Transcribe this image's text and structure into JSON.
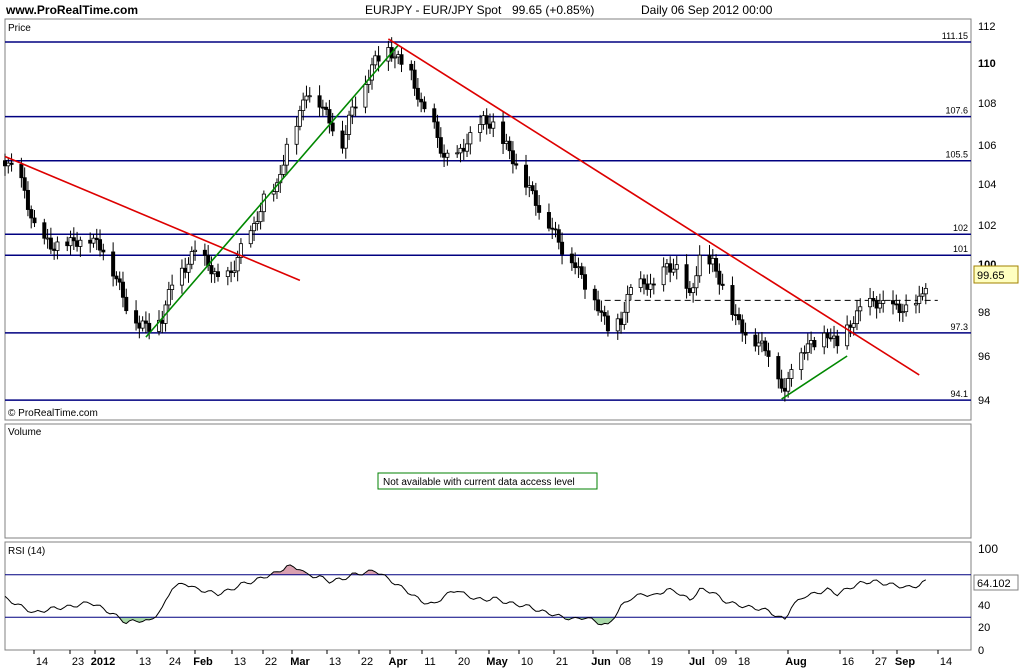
{
  "header": {
    "site": "www.ProRealTime.com",
    "instrument": "EURJPY - EUR/JPY Spot",
    "quote": "99.65 (+0.85%)",
    "period": "Daily  06 Sep 2012 00:00"
  },
  "price_panel": {
    "label": "Price",
    "watermark": "© ProRealTime.com",
    "last_price": "99.65",
    "y_ticks": [
      "112",
      "110",
      "108",
      "106",
      "104",
      "102",
      "100",
      "98",
      "96",
      "94"
    ]
  },
  "volume_panel": {
    "label": "Volume",
    "notice": "Not available with current data access level"
  },
  "rsi_panel": {
    "label": "RSI (14)",
    "last_value": "64.102",
    "y_ticks": [
      "100",
      "60",
      "40",
      "20",
      "0"
    ]
  },
  "x_axis": {
    "ticks": [
      "14",
      "23",
      "2012",
      "13",
      "24",
      "Feb",
      "13",
      "22",
      "Mar",
      "13",
      "22",
      "Apr",
      "11",
      "20",
      "May",
      "10",
      "21",
      "Jun",
      "08",
      "19",
      "Jul",
      "09",
      "18",
      "Aug",
      "16",
      "27",
      "Sep",
      "14"
    ]
  },
  "chart_data": {
    "type": "candlestick",
    "x_range": [
      "2011-11-30",
      "2012-09-14"
    ],
    "ylim": [
      93.2,
      112.2
    ],
    "horizontal_levels": [
      {
        "value": 111.15,
        "label": "111.15"
      },
      {
        "value": 107.6,
        "label": "107.6"
      },
      {
        "value": 105.5,
        "label": "105.5"
      },
      {
        "value": 102,
        "label": "102"
      },
      {
        "value": 101,
        "label": "101"
      },
      {
        "value": 97.3,
        "label": "97.3"
      },
      {
        "value": 94.1,
        "label": "94.1"
      }
    ],
    "dashed_level": {
      "value": 98.85,
      "from": "2012-05-31",
      "to": "2012-09-06"
    },
    "trendlines": [
      {
        "color": "#dd0000",
        "from": [
          "2011-11-30",
          105.7
        ],
        "to": [
          "2012-02-28",
          99.8
        ]
      },
      {
        "color": "#008800",
        "from": [
          "2012-01-12",
          97.1
        ],
        "to": [
          "2012-03-29",
          111.0
        ]
      },
      {
        "color": "#dd0000",
        "from": [
          "2012-03-26",
          111.3
        ],
        "to": [
          "2012-09-04",
          95.3
        ]
      },
      {
        "color": "#008800",
        "from": [
          "2012-07-24",
          94.15
        ],
        "to": [
          "2012-08-13",
          96.2
        ]
      }
    ],
    "price_path": [
      [
        "2011-11-30",
        105.5
      ],
      [
        "2011-12-05",
        104.5
      ],
      [
        "2011-12-09",
        102.3
      ],
      [
        "2011-12-14",
        101.4
      ],
      [
        "2011-12-20",
        101.6
      ],
      [
        "2011-12-26",
        101.8
      ],
      [
        "2011-12-30",
        101.3
      ],
      [
        "2012-01-03",
        99.9
      ],
      [
        "2012-01-06",
        98.6
      ],
      [
        "2012-01-10",
        97.7
      ],
      [
        "2012-01-13",
        97.6
      ],
      [
        "2012-01-17",
        98.0
      ],
      [
        "2012-01-20",
        99.7
      ],
      [
        "2012-01-24",
        100.4
      ],
      [
        "2012-01-27",
        101.2
      ],
      [
        "2012-01-31",
        100.6
      ],
      [
        "2012-02-03",
        99.8
      ],
      [
        "2012-02-07",
        100.1
      ],
      [
        "2012-02-10",
        101.3
      ],
      [
        "2012-02-14",
        102.3
      ],
      [
        "2012-02-17",
        103.7
      ],
      [
        "2012-02-21",
        104.2
      ],
      [
        "2012-02-24",
        106.2
      ],
      [
        "2012-02-28",
        107.7
      ],
      [
        "2012-03-01",
        108.8
      ],
      [
        "2012-03-05",
        108.3
      ],
      [
        "2012-03-08",
        107.4
      ],
      [
        "2012-03-12",
        106.3
      ],
      [
        "2012-03-15",
        108.0
      ],
      [
        "2012-03-19",
        109.2
      ],
      [
        "2012-03-22",
        110.3
      ],
      [
        "2012-03-26",
        110.8
      ],
      [
        "2012-03-29",
        110.3
      ],
      [
        "2012-04-02",
        109.6
      ],
      [
        "2012-04-05",
        108.1
      ],
      [
        "2012-04-09",
        107.1
      ],
      [
        "2012-04-12",
        105.6
      ],
      [
        "2012-04-16",
        105.7
      ],
      [
        "2012-04-19",
        106.4
      ],
      [
        "2012-04-24",
        107.4
      ],
      [
        "2012-04-27",
        107.2
      ],
      [
        "2012-05-01",
        106.2
      ],
      [
        "2012-05-04",
        105.3
      ],
      [
        "2012-05-08",
        104.2
      ],
      [
        "2012-05-11",
        103.2
      ],
      [
        "2012-05-15",
        102.3
      ],
      [
        "2012-05-18",
        101.3
      ],
      [
        "2012-05-22",
        100.6
      ],
      [
        "2012-05-25",
        99.6
      ],
      [
        "2012-05-29",
        98.6
      ],
      [
        "2012-06-01",
        97.5
      ],
      [
        "2012-06-05",
        97.9
      ],
      [
        "2012-06-08",
        99.4
      ],
      [
        "2012-06-12",
        99.7
      ],
      [
        "2012-06-15",
        99.4
      ],
      [
        "2012-06-19",
        100.5
      ],
      [
        "2012-06-22",
        100.3
      ],
      [
        "2012-06-26",
        99.0
      ],
      [
        "2012-06-29",
        100.8
      ],
      [
        "2012-07-03",
        100.6
      ],
      [
        "2012-07-06",
        99.5
      ],
      [
        "2012-07-10",
        98.0
      ],
      [
        "2012-07-13",
        97.3
      ],
      [
        "2012-07-17",
        96.8
      ],
      [
        "2012-07-20",
        96.4
      ],
      [
        "2012-07-23",
        95.3
      ],
      [
        "2012-07-25",
        94.3
      ],
      [
        "2012-07-27",
        95.8
      ],
      [
        "2012-07-31",
        96.6
      ],
      [
        "2012-08-03",
        96.8
      ],
      [
        "2012-08-07",
        97.3
      ],
      [
        "2012-08-10",
        96.7
      ],
      [
        "2012-08-14",
        97.7
      ],
      [
        "2012-08-17",
        98.4
      ],
      [
        "2012-08-21",
        98.8
      ],
      [
        "2012-08-24",
        98.6
      ],
      [
        "2012-08-28",
        98.5
      ],
      [
        "2012-08-31",
        98.4
      ],
      [
        "2012-09-04",
        98.8
      ],
      [
        "2012-09-06",
        99.65
      ]
    ],
    "rsi_path": [
      [
        "2011-11-30",
        48
      ],
      [
        "2011-12-05",
        40
      ],
      [
        "2011-12-09",
        34
      ],
      [
        "2011-12-14",
        38
      ],
      [
        "2011-12-20",
        40
      ],
      [
        "2011-12-26",
        44
      ],
      [
        "2011-12-30",
        38
      ],
      [
        "2012-01-03",
        31
      ],
      [
        "2012-01-06",
        25
      ],
      [
        "2012-01-10",
        27
      ],
      [
        "2012-01-13",
        26
      ],
      [
        "2012-01-17",
        38
      ],
      [
        "2012-01-20",
        58
      ],
      [
        "2012-01-24",
        62
      ],
      [
        "2012-01-27",
        57
      ],
      [
        "2012-01-31",
        54
      ],
      [
        "2012-02-03",
        52
      ],
      [
        "2012-02-07",
        56
      ],
      [
        "2012-02-10",
        61
      ],
      [
        "2012-02-14",
        64
      ],
      [
        "2012-02-17",
        68
      ],
      [
        "2012-02-21",
        72
      ],
      [
        "2012-02-24",
        78
      ],
      [
        "2012-02-28",
        76
      ],
      [
        "2012-03-01",
        70
      ],
      [
        "2012-03-05",
        68
      ],
      [
        "2012-03-08",
        64
      ],
      [
        "2012-03-12",
        66
      ],
      [
        "2012-03-15",
        70
      ],
      [
        "2012-03-19",
        72
      ],
      [
        "2012-03-22",
        74
      ],
      [
        "2012-03-26",
        66
      ],
      [
        "2012-03-29",
        60
      ],
      [
        "2012-04-02",
        52
      ],
      [
        "2012-04-05",
        45
      ],
      [
        "2012-04-09",
        42
      ],
      [
        "2012-04-12",
        50
      ],
      [
        "2012-04-16",
        56
      ],
      [
        "2012-04-19",
        50
      ],
      [
        "2012-04-24",
        46
      ],
      [
        "2012-04-27",
        48
      ],
      [
        "2012-05-01",
        44
      ],
      [
        "2012-05-04",
        42
      ],
      [
        "2012-05-08",
        40
      ],
      [
        "2012-05-11",
        36
      ],
      [
        "2012-05-15",
        33
      ],
      [
        "2012-05-18",
        30
      ],
      [
        "2012-05-22",
        28
      ],
      [
        "2012-05-25",
        30
      ],
      [
        "2012-05-29",
        25
      ],
      [
        "2012-06-01",
        22
      ],
      [
        "2012-06-05",
        40
      ],
      [
        "2012-06-08",
        48
      ],
      [
        "2012-06-12",
        52
      ],
      [
        "2012-06-15",
        50
      ],
      [
        "2012-06-19",
        56
      ],
      [
        "2012-06-22",
        54
      ],
      [
        "2012-06-26",
        46
      ],
      [
        "2012-06-29",
        56
      ],
      [
        "2012-07-03",
        54
      ],
      [
        "2012-07-06",
        46
      ],
      [
        "2012-07-10",
        42
      ],
      [
        "2012-07-13",
        40
      ],
      [
        "2012-07-17",
        38
      ],
      [
        "2012-07-20",
        36
      ],
      [
        "2012-07-23",
        30
      ],
      [
        "2012-07-25",
        28
      ],
      [
        "2012-07-27",
        40
      ],
      [
        "2012-07-31",
        50
      ],
      [
        "2012-08-03",
        52
      ],
      [
        "2012-08-07",
        56
      ],
      [
        "2012-08-10",
        52
      ],
      [
        "2012-08-14",
        58
      ],
      [
        "2012-08-17",
        62
      ],
      [
        "2012-08-21",
        64
      ],
      [
        "2012-08-24",
        62
      ],
      [
        "2012-08-28",
        60
      ],
      [
        "2012-08-31",
        58
      ],
      [
        "2012-09-04",
        60
      ],
      [
        "2012-09-06",
        64.1
      ]
    ],
    "rsi_levels": [
      70,
      30
    ],
    "colors": {
      "levels": "#000080",
      "up_trend": "#008800",
      "down_trend": "#dd0000",
      "candle": "#000000",
      "rsi_overbought": "#d9a0b0",
      "rsi_oversold": "#a8d8a8"
    }
  }
}
